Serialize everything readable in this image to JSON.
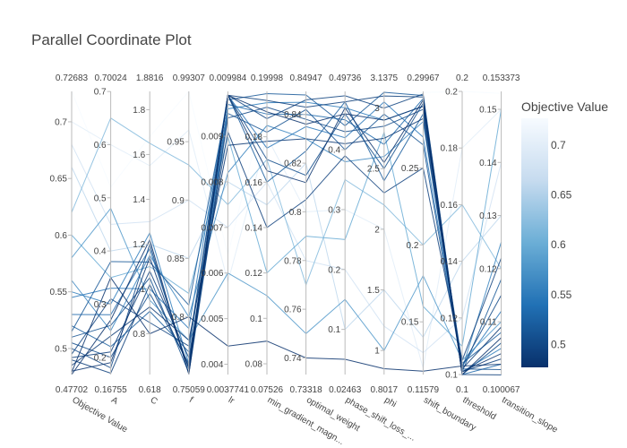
{
  "chart_data": {
    "type": "parallel_coordinates",
    "title": "Parallel Coordinate Plot",
    "colorbar": {
      "title": "Objective Value",
      "range": [
        0.47702,
        0.72683
      ],
      "ticks": [
        "0.5",
        "0.55",
        "0.6",
        "0.65",
        "0.7"
      ],
      "colors": [
        "#08306b",
        "#2171b5",
        "#6baed6",
        "#c6dbef",
        "#f7fbff"
      ]
    },
    "axes": [
      {
        "name": "Objective Value",
        "min": "0.47702",
        "max": "0.72683",
        "range": [
          0.47702,
          0.72683
        ],
        "ticks": [
          [
            0.5,
            "0.5"
          ],
          [
            0.55,
            "0.55"
          ],
          [
            0.6,
            "0.6"
          ],
          [
            0.65,
            "0.65"
          ],
          [
            0.7,
            "0.7"
          ]
        ]
      },
      {
        "name": "A",
        "min": "0.16755",
        "max": "0.70024",
        "range": [
          0.16755,
          0.70024
        ],
        "ticks": [
          [
            0.2,
            "0.2"
          ],
          [
            0.3,
            "0.3"
          ],
          [
            0.4,
            "0.4"
          ],
          [
            0.5,
            "0.5"
          ],
          [
            0.6,
            "0.6"
          ],
          [
            0.7,
            "0.7"
          ]
        ]
      },
      {
        "name": "C",
        "min": "0.618",
        "max": "1.8816",
        "range": [
          0.618,
          1.8816
        ],
        "ticks": [
          [
            0.8,
            "0.8"
          ],
          [
            1.0,
            "1"
          ],
          [
            1.2,
            "1.2"
          ],
          [
            1.4,
            "1.4"
          ],
          [
            1.6,
            "1.6"
          ],
          [
            1.8,
            "1.8"
          ]
        ]
      },
      {
        "name": "f",
        "min": "0.75059",
        "max": "0.99307",
        "range": [
          0.75059,
          0.99307
        ],
        "ticks": [
          [
            0.8,
            "0.8"
          ],
          [
            0.85,
            "0.85"
          ],
          [
            0.9,
            "0.9"
          ],
          [
            0.95,
            "0.95"
          ]
        ]
      },
      {
        "name": "lr",
        "min": "0.0037741",
        "max": "0.009984",
        "range": [
          0.0037741,
          0.009984
        ],
        "ticks": [
          [
            0.004,
            "0.004"
          ],
          [
            0.005,
            "0.005"
          ],
          [
            0.006,
            "0.006"
          ],
          [
            0.007,
            "0.007"
          ],
          [
            0.008,
            "0.008"
          ],
          [
            0.009,
            "0.009"
          ]
        ]
      },
      {
        "name": "min_gradient_magn...",
        "min": "0.07526",
        "max": "0.19998",
        "range": [
          0.07526,
          0.19998
        ],
        "ticks": [
          [
            0.08,
            "0.08"
          ],
          [
            0.1,
            "0.1"
          ],
          [
            0.12,
            "0.12"
          ],
          [
            0.14,
            "0.14"
          ],
          [
            0.16,
            "0.16"
          ],
          [
            0.18,
            "0.18"
          ]
        ]
      },
      {
        "name": "optimal_weight",
        "min": "0.73318",
        "max": "0.84947",
        "range": [
          0.73318,
          0.84947
        ],
        "ticks": [
          [
            0.74,
            "0.74"
          ],
          [
            0.76,
            "0.76"
          ],
          [
            0.78,
            "0.78"
          ],
          [
            0.8,
            "0.8"
          ],
          [
            0.82,
            "0.82"
          ],
          [
            0.84,
            "0.84"
          ]
        ]
      },
      {
        "name": "phase_shift_loss_...",
        "min": "0.02463",
        "max": "0.49736",
        "range": [
          0.02463,
          0.49736
        ],
        "ticks": [
          [
            0.1,
            "0.1"
          ],
          [
            0.2,
            "0.2"
          ],
          [
            0.3,
            "0.3"
          ],
          [
            0.4,
            "0.4"
          ]
        ]
      },
      {
        "name": "phi",
        "min": "0.8017",
        "max": "3.1375",
        "range": [
          0.8017,
          3.1375
        ],
        "ticks": [
          [
            1.0,
            "1"
          ],
          [
            1.5,
            "1.5"
          ],
          [
            2.0,
            "2"
          ],
          [
            2.5,
            "2.5"
          ],
          [
            3.0,
            "3"
          ]
        ]
      },
      {
        "name": "shift_boundary",
        "min": "0.11579",
        "max": "0.29967",
        "range": [
          0.11579,
          0.29967
        ],
        "ticks": [
          [
            0.15,
            "0.15"
          ],
          [
            0.2,
            "0.2"
          ],
          [
            0.25,
            "0.25"
          ]
        ]
      },
      {
        "name": "threshold",
        "min": "0.1",
        "max": "0.2",
        "range": [
          0.1,
          0.2
        ],
        "ticks": [
          [
            0.1,
            "0.1"
          ],
          [
            0.12,
            "0.12"
          ],
          [
            0.14,
            "0.14"
          ],
          [
            0.16,
            "0.16"
          ],
          [
            0.18,
            "0.18"
          ],
          [
            0.2,
            "0.2"
          ]
        ]
      },
      {
        "name": "transition_slope",
        "min": "0.100067",
        "max": "0.153373",
        "range": [
          0.100067,
          0.153373
        ],
        "ticks": [
          [
            0.11,
            "0.11"
          ],
          [
            0.12,
            "0.12"
          ],
          [
            0.13,
            "0.13"
          ],
          [
            0.14,
            "0.14"
          ],
          [
            0.15,
            "0.15"
          ]
        ]
      }
    ],
    "lines": [
      [
        0.7268,
        0.52,
        1.68,
        0.993,
        0.0064,
        0.198,
        0.849,
        0.49,
        3.1,
        0.299,
        0.2,
        0.153
      ],
      [
        0.7,
        0.6,
        1.55,
        0.96,
        0.0058,
        0.18,
        0.8,
        0.3,
        2.0,
        0.12,
        0.18,
        0.15
      ],
      [
        0.68,
        0.45,
        1.3,
        0.9,
        0.007,
        0.16,
        0.78,
        0.2,
        1.2,
        0.13,
        0.12,
        0.14
      ],
      [
        0.66,
        0.4,
        1.2,
        0.85,
        0.008,
        0.15,
        0.82,
        0.1,
        1.5,
        0.14,
        0.14,
        0.13
      ],
      [
        0.62,
        0.65,
        1.65,
        0.93,
        0.0075,
        0.17,
        0.77,
        0.35,
        2.2,
        0.2,
        0.16,
        0.12
      ],
      [
        0.6,
        0.35,
        1.1,
        0.82,
        0.009,
        0.12,
        0.79,
        0.25,
        2.8,
        0.16,
        0.11,
        0.15
      ],
      [
        0.58,
        0.48,
        0.95,
        0.78,
        0.006,
        0.11,
        0.75,
        0.15,
        1.0,
        0.18,
        0.105,
        0.11
      ],
      [
        0.56,
        0.25,
        1.15,
        0.8,
        0.0082,
        0.185,
        0.83,
        0.38,
        2.6,
        0.28,
        0.102,
        0.125
      ],
      [
        0.55,
        0.3,
        1.25,
        0.76,
        0.0096,
        0.195,
        0.845,
        0.47,
        2.9,
        0.29,
        0.101,
        0.105
      ],
      [
        0.545,
        0.33,
        1.0,
        0.79,
        0.0099,
        0.175,
        0.835,
        0.42,
        3.05,
        0.27,
        0.103,
        0.112
      ],
      [
        0.53,
        0.28,
        1.18,
        0.755,
        0.0097,
        0.19,
        0.84,
        0.45,
        2.7,
        0.295,
        0.1,
        0.102
      ],
      [
        0.52,
        0.22,
        0.9,
        0.77,
        0.0099,
        0.16,
        0.825,
        0.48,
        2.4,
        0.285,
        0.104,
        0.108
      ],
      [
        0.515,
        0.38,
        1.12,
        0.81,
        0.0098,
        0.199,
        0.848,
        0.44,
        3.13,
        0.297,
        0.101,
        0.118
      ],
      [
        0.51,
        0.26,
        1.05,
        0.752,
        0.0095,
        0.182,
        0.842,
        0.4,
        2.95,
        0.265,
        0.102,
        0.101
      ],
      [
        0.505,
        0.2,
        0.98,
        0.76,
        0.0099,
        0.17,
        0.815,
        0.46,
        2.5,
        0.292,
        0.1,
        0.106
      ],
      [
        0.5,
        0.18,
        1.2,
        0.751,
        0.0094,
        0.193,
        0.838,
        0.43,
        2.85,
        0.288,
        0.103,
        0.115
      ],
      [
        0.495,
        0.31,
        0.85,
        0.775,
        0.0099,
        0.188,
        0.846,
        0.49,
        3.0,
        0.298,
        0.101,
        0.103
      ],
      [
        0.492,
        0.21,
        1.08,
        0.765,
        0.0091,
        0.14,
        0.805,
        0.39,
        2.3,
        0.25,
        0.105,
        0.122
      ],
      [
        0.49,
        0.17,
        1.02,
        0.758,
        0.0099,
        0.196,
        0.843,
        0.48,
        3.1,
        0.296,
        0.1,
        0.1
      ],
      [
        0.485,
        0.24,
        0.92,
        0.78,
        0.0088,
        0.178,
        0.83,
        0.41,
        2.75,
        0.282,
        0.102,
        0.109
      ],
      [
        0.48,
        0.19,
        1.14,
        0.756,
        0.0099,
        0.165,
        0.812,
        0.47,
        2.55,
        0.294,
        0.101,
        0.104
      ],
      [
        0.479,
        0.35,
        0.8,
        0.8,
        0.0044,
        0.09,
        0.74,
        0.05,
        0.85,
        0.118,
        0.103,
        0.102
      ],
      [
        0.477,
        0.27,
        1.22,
        0.751,
        0.0099,
        0.191,
        0.836,
        0.46,
        2.9,
        0.29,
        0.1,
        0.107
      ]
    ]
  }
}
